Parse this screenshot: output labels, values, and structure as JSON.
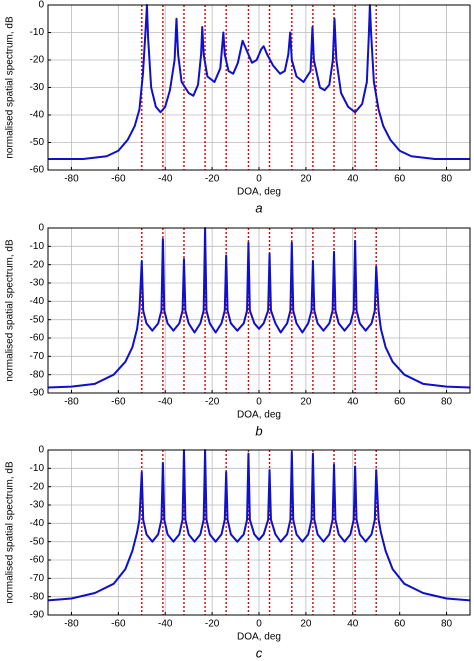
{
  "chart_data": [
    {
      "type": "line",
      "caption": "a",
      "xlabel": "DOA, deg",
      "ylabel": "normalised spatial spectrum, dB",
      "xlim": [
        -90,
        90
      ],
      "xticks": [
        -80,
        -60,
        -40,
        -20,
        0,
        20,
        40,
        60,
        80
      ],
      "ylim": [
        -60,
        0
      ],
      "yticks": [
        -60,
        -50,
        -40,
        -30,
        -20,
        -10,
        0
      ],
      "grid": true,
      "x": [
        -90,
        -75,
        -65,
        -60,
        -56,
        -53,
        -51,
        -49.5,
        -48.3,
        -47.8,
        -47.3,
        -46,
        -44,
        -42,
        -40,
        -38,
        -36,
        -35.2,
        -34.5,
        -33,
        -30,
        -28,
        -26,
        -24.7,
        -24.2,
        -23.6,
        -22,
        -19,
        -16.5,
        -15.2,
        -14.6,
        -13,
        -11,
        -9,
        -7,
        -5.5,
        -3,
        -1,
        1,
        2,
        3.5,
        6,
        9,
        11,
        12.5,
        13.3,
        14,
        16,
        19,
        22,
        22.8,
        23.4,
        26,
        28,
        30,
        31.5,
        32.2,
        33,
        35,
        38,
        41,
        44,
        46,
        46.8,
        47.3,
        47.8,
        49,
        51,
        53,
        56,
        60,
        65,
        75,
        90
      ],
      "series": [
        {
          "color": "#1010c8",
          "values": [
            -56,
            -56,
            -55,
            -53,
            -49,
            -44,
            -38,
            -25,
            -8,
            0,
            -12,
            -30,
            -37,
            -39,
            -37,
            -31,
            -20,
            -5,
            -18,
            -28,
            -32,
            -33,
            -29,
            -18,
            -8,
            -18,
            -26,
            -28,
            -23,
            -10,
            -18,
            -24,
            -25,
            -21,
            -13,
            -16,
            -21,
            -20,
            -16,
            -15,
            -18,
            -22,
            -25,
            -24,
            -18,
            -10,
            -20,
            -26,
            -28,
            -24,
            -8,
            -20,
            -30,
            -31,
            -29,
            -20,
            -5,
            -20,
            -32,
            -37,
            -39,
            -36,
            -28,
            -12,
            0,
            -10,
            -28,
            -38,
            -44,
            -49,
            -53,
            -55,
            -56,
            -56
          ]
        }
      ],
      "reference_lines": {
        "color": "#e00000",
        "x": [
          -50,
          -41,
          -32,
          -23,
          -14,
          -4.5,
          4.5,
          14,
          23,
          32,
          41,
          50
        ]
      }
    },
    {
      "type": "line",
      "caption": "b",
      "xlabel": "DOA, deg",
      "ylabel": "normalised spatial spectrum, dB",
      "xlim": [
        -90,
        90
      ],
      "xticks": [
        -80,
        -60,
        -40,
        -20,
        0,
        20,
        40,
        60,
        80
      ],
      "ylim": [
        -90,
        0
      ],
      "yticks": [
        -90,
        -80,
        -70,
        -60,
        -50,
        -40,
        -30,
        -20,
        -10,
        0
      ],
      "grid": true,
      "x": [
        -90,
        -80,
        -70,
        -62,
        -57,
        -54,
        -52,
        -51,
        -50,
        -49.4,
        -48,
        -45.5,
        -43,
        -41.6,
        -41,
        -40.4,
        -39,
        -36.5,
        -34,
        -32.6,
        -32,
        -31.4,
        -30,
        -27.5,
        -25,
        -23.6,
        -23,
        -22.4,
        -21,
        -18.5,
        -16,
        -14.6,
        -14,
        -13.4,
        -12,
        -9.25,
        -6.5,
        -5.1,
        -4.5,
        -3.9,
        -2,
        0,
        2,
        3.9,
        4.5,
        5.1,
        7,
        9.25,
        12,
        13.4,
        14,
        14.6,
        16,
        18.5,
        21,
        22.4,
        23,
        23.6,
        25,
        27.5,
        30,
        31.4,
        32,
        32.6,
        34,
        36.5,
        39,
        40.4,
        41,
        41.6,
        43,
        45.5,
        48,
        49.4,
        50,
        51,
        52,
        54,
        57,
        62,
        70,
        80,
        90
      ],
      "series": [
        {
          "color": "#1010c8",
          "values": [
            -87,
            -86.5,
            -85,
            -80,
            -73,
            -65,
            -55,
            -45,
            -18,
            -45,
            -52,
            -56,
            -52,
            -45,
            -6,
            -45,
            -52,
            -56,
            -52,
            -45,
            -17,
            -45,
            -52,
            -57,
            -52,
            -45,
            0,
            -45,
            -52,
            -57,
            -52,
            -45,
            -15,
            -45,
            -52,
            -56,
            -52,
            -45,
            -8,
            -45,
            -52,
            -55,
            -52,
            -45,
            -14,
            -45,
            -52,
            -57,
            -52,
            -45,
            -8,
            -45,
            -52,
            -57,
            -52,
            -45,
            -18,
            -45,
            -52,
            -56,
            -52,
            -45,
            -13,
            -45,
            -52,
            -56,
            -52,
            -45,
            -7,
            -45,
            -52,
            -56,
            -52,
            -45,
            -21,
            -45,
            -55,
            -65,
            -73,
            -80,
            -85,
            -86.5,
            -87
          ]
        }
      ],
      "reference_lines": {
        "color": "#e00000",
        "x": [
          -50,
          -41,
          -32,
          -23,
          -14,
          -4.5,
          4.5,
          14,
          23,
          32,
          41,
          50
        ]
      }
    },
    {
      "type": "line",
      "caption": "c",
      "xlabel": "DOA, deg",
      "ylabel": "normalised spatial spectrum, dB",
      "xlim": [
        -90,
        90
      ],
      "xticks": [
        -80,
        -60,
        -40,
        -20,
        0,
        20,
        40,
        60,
        80
      ],
      "ylim": [
        -90,
        0
      ],
      "yticks": [
        -90,
        -80,
        -70,
        -60,
        -50,
        -40,
        -30,
        -20,
        -10,
        0
      ],
      "grid": true,
      "x": [
        -90,
        -80,
        -70,
        -62,
        -57,
        -54,
        -52,
        -51,
        -50,
        -49.4,
        -48,
        -45.5,
        -43,
        -41.6,
        -41,
        -40.4,
        -39,
        -36.5,
        -34,
        -32.6,
        -32,
        -31.4,
        -30,
        -27.5,
        -25,
        -23.6,
        -23,
        -22.4,
        -21,
        -18.5,
        -16,
        -14.6,
        -14,
        -13.4,
        -12,
        -9.25,
        -6.5,
        -5.1,
        -4.5,
        -3.9,
        -2,
        0,
        2,
        3.9,
        4.5,
        5.1,
        7,
        9.25,
        12,
        13.4,
        14,
        14.6,
        16,
        18.5,
        21,
        22.4,
        23,
        23.6,
        25,
        27.5,
        30,
        31.4,
        32,
        32.6,
        34,
        36.5,
        39,
        40.4,
        41,
        41.6,
        43,
        45.5,
        48,
        49.4,
        50,
        51,
        52,
        54,
        57,
        62,
        70,
        80,
        90
      ],
      "series": [
        {
          "color": "#1010c8",
          "values": [
            -82,
            -81,
            -78,
            -73,
            -65,
            -55,
            -45,
            -38,
            -12,
            -38,
            -46,
            -50,
            -46,
            -38,
            -7,
            -38,
            -46,
            -50,
            -46,
            -38,
            0,
            -38,
            -46,
            -50,
            -46,
            -38,
            0,
            -38,
            -46,
            -50,
            -46,
            -38,
            -12,
            -38,
            -46,
            -50,
            -46,
            -38,
            -2,
            -38,
            -46,
            -49,
            -46,
            -38,
            -11,
            -38,
            -46,
            -50,
            -46,
            -38,
            -1,
            -38,
            -46,
            -50,
            -46,
            -38,
            -2,
            -38,
            -46,
            -50,
            -46,
            -38,
            -8,
            -38,
            -46,
            -50,
            -46,
            -38,
            -9,
            -38,
            -46,
            -50,
            -46,
            -38,
            -11,
            -38,
            -45,
            -55,
            -65,
            -73,
            -78,
            -81,
            -82
          ]
        }
      ],
      "reference_lines": {
        "color": "#e00000",
        "x": [
          -50,
          -41,
          -32,
          -23,
          -14,
          -4.5,
          4.5,
          14,
          23,
          32,
          41,
          50
        ]
      }
    }
  ]
}
